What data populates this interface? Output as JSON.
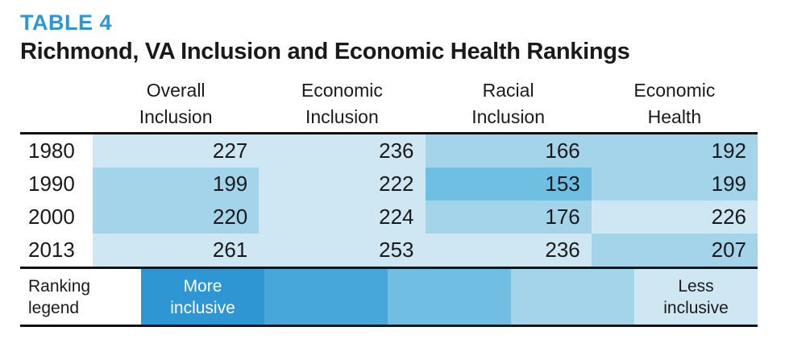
{
  "accent_color": "#2e96d2",
  "text_color": "#1a1a1a",
  "table_label": "TABLE 4",
  "title": "Richmond, VA Inclusion and Economic Health Rankings",
  "columns": [
    {
      "line1": "Overall",
      "line2": "Inclusion"
    },
    {
      "line1": "Economic",
      "line2": "Inclusion"
    },
    {
      "line1": "Racial",
      "line2": "Inclusion"
    },
    {
      "line1": "Economic",
      "line2": "Health"
    }
  ],
  "rows": [
    {
      "year": "1980",
      "values": [
        "227",
        "236",
        "166",
        "192"
      ],
      "cell_colors": [
        "#cfe7f3",
        "#cfe7f3",
        "#a3d4ea",
        "#a3d4ea"
      ]
    },
    {
      "year": "1990",
      "values": [
        "199",
        "222",
        "153",
        "199"
      ],
      "cell_colors": [
        "#a3d4ea",
        "#cfe7f3",
        "#6fbfe2",
        "#a3d4ea"
      ]
    },
    {
      "year": "2000",
      "values": [
        "220",
        "224",
        "176",
        "226"
      ],
      "cell_colors": [
        "#a3d4ea",
        "#cfe7f3",
        "#a3d4ea",
        "#cfe7f3"
      ]
    },
    {
      "year": "2013",
      "values": [
        "261",
        "253",
        "236",
        "207"
      ],
      "cell_colors": [
        "#cfe7f3",
        "#cfe7f3",
        "#cfe7f3",
        "#a3d4ea"
      ]
    }
  ],
  "legend": {
    "label_line1": "Ranking",
    "label_line2": "legend",
    "more_line1": "More",
    "more_line2": "inclusive",
    "more_text_color": "#ffffff",
    "less_line1": "Less",
    "less_line2": "inclusive",
    "less_text_color": "#1a1a1a",
    "band_colors": [
      "#2e96d2",
      "#47a7db",
      "#70bfe2",
      "#a3d4ea",
      "#cfe7f3"
    ]
  },
  "chart_data": {
    "type": "heatmap",
    "table_label": "TABLE 4",
    "title": "Richmond, VA Inclusion and Economic Health Rankings",
    "columns": [
      "Overall Inclusion",
      "Economic Inclusion",
      "Racial Inclusion",
      "Economic Health"
    ],
    "years": [
      "1980",
      "1990",
      "2000",
      "2013"
    ],
    "values": [
      [
        227,
        236,
        166,
        192
      ],
      [
        199,
        222,
        153,
        199
      ],
      [
        220,
        224,
        176,
        226
      ],
      [
        261,
        253,
        236,
        207
      ]
    ],
    "legend": {
      "left_label": "More inclusive",
      "right_label": "Less inclusive",
      "colors": [
        "#2e96d2",
        "#47a7db",
        "#70bfe2",
        "#a3d4ea",
        "#cfe7f3"
      ]
    }
  }
}
